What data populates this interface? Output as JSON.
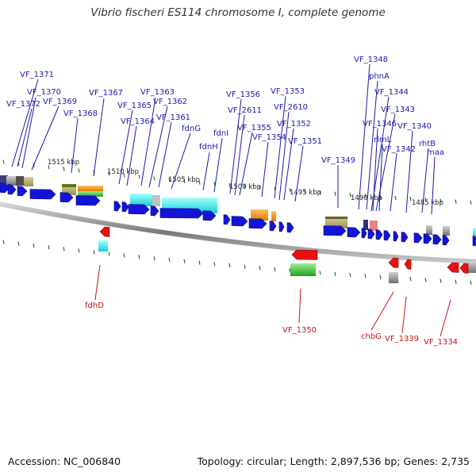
{
  "title": "Vibrio fischeri ES114 chromosome I, complete genome",
  "footer": {
    "accession": "Accession: NC_006840",
    "stats": "Topology: circular; Length: 2,897,536 bp; Genes: 2,735"
  },
  "colors": {
    "forward_gene": "#1414d8",
    "reverse_gene": "#e81010",
    "top_label": "#1a1ab0",
    "bottom_label": "#cc1111",
    "tick": "#1a7a1a",
    "backbone": "#8a8a8a"
  },
  "kbp_markers": [
    "1515 kbp",
    "1510 kbp",
    "1505 kbp",
    "1500 kbp",
    "1495 kbp",
    "1490 kbp",
    "1485 kbp"
  ],
  "top_labels": [
    "VF_1371",
    "VF_1370",
    "VF_1372",
    "VF_1369",
    "VF_1368",
    "VF_1367",
    "VF_1365",
    "VF_1364",
    "VF_1363",
    "VF_1362",
    "VF_1361",
    "fdnG",
    "fdnH",
    "fdnI",
    "VF_1356",
    "VF_2611",
    "VF_1355",
    "VF_1354",
    "VF_1353",
    "VF_2610",
    "VF_1352",
    "VF_1351",
    "VF_1349",
    "VF_1348",
    "phnA",
    "VF_1344",
    "VF_1343",
    "VF_1346",
    "rimL",
    "VF_1342",
    "VF_1340",
    "rhtB",
    "maa"
  ],
  "bottom_labels": [
    "fdhD",
    "VF_1350",
    "chbG",
    "VF_1339",
    "VF_1334"
  ]
}
